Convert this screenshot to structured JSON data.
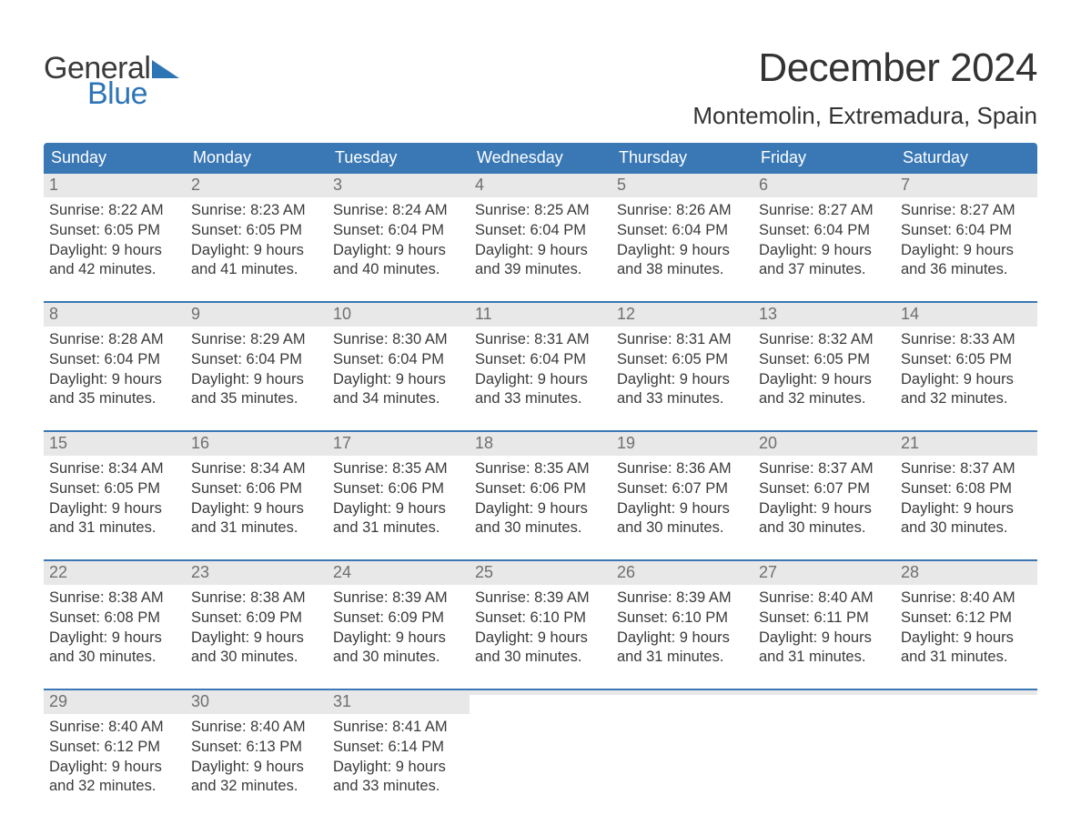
{
  "logo": {
    "line1": "General",
    "line2": "Blue",
    "tri_color": "#2e75b6"
  },
  "title": "December 2024",
  "location": "Montemolin, Extremadura, Spain",
  "colors": {
    "header_bg": "#3a78b5",
    "header_text": "#ffffff",
    "daynum_bg": "#e8e8e8",
    "daynum_text": "#6f6f6f",
    "body_text": "#3a3a3a",
    "week_border": "#3a78b5",
    "page_bg": "#ffffff"
  },
  "typography": {
    "title_fontsize": 44,
    "location_fontsize": 26,
    "header_fontsize": 18,
    "daynum_fontsize": 18,
    "body_fontsize": 16.5,
    "font_family": "Arial"
  },
  "layout": {
    "columns": 7,
    "rows": 5,
    "cell_min_height": 128
  },
  "day_names": [
    "Sunday",
    "Monday",
    "Tuesday",
    "Wednesday",
    "Thursday",
    "Friday",
    "Saturday"
  ],
  "weeks": [
    [
      {
        "n": "1",
        "sr": "Sunrise: 8:22 AM",
        "ss": "Sunset: 6:05 PM",
        "d1": "Daylight: 9 hours",
        "d2": "and 42 minutes."
      },
      {
        "n": "2",
        "sr": "Sunrise: 8:23 AM",
        "ss": "Sunset: 6:05 PM",
        "d1": "Daylight: 9 hours",
        "d2": "and 41 minutes."
      },
      {
        "n": "3",
        "sr": "Sunrise: 8:24 AM",
        "ss": "Sunset: 6:04 PM",
        "d1": "Daylight: 9 hours",
        "d2": "and 40 minutes."
      },
      {
        "n": "4",
        "sr": "Sunrise: 8:25 AM",
        "ss": "Sunset: 6:04 PM",
        "d1": "Daylight: 9 hours",
        "d2": "and 39 minutes."
      },
      {
        "n": "5",
        "sr": "Sunrise: 8:26 AM",
        "ss": "Sunset: 6:04 PM",
        "d1": "Daylight: 9 hours",
        "d2": "and 38 minutes."
      },
      {
        "n": "6",
        "sr": "Sunrise: 8:27 AM",
        "ss": "Sunset: 6:04 PM",
        "d1": "Daylight: 9 hours",
        "d2": "and 37 minutes."
      },
      {
        "n": "7",
        "sr": "Sunrise: 8:27 AM",
        "ss": "Sunset: 6:04 PM",
        "d1": "Daylight: 9 hours",
        "d2": "and 36 minutes."
      }
    ],
    [
      {
        "n": "8",
        "sr": "Sunrise: 8:28 AM",
        "ss": "Sunset: 6:04 PM",
        "d1": "Daylight: 9 hours",
        "d2": "and 35 minutes."
      },
      {
        "n": "9",
        "sr": "Sunrise: 8:29 AM",
        "ss": "Sunset: 6:04 PM",
        "d1": "Daylight: 9 hours",
        "d2": "and 35 minutes."
      },
      {
        "n": "10",
        "sr": "Sunrise: 8:30 AM",
        "ss": "Sunset: 6:04 PM",
        "d1": "Daylight: 9 hours",
        "d2": "and 34 minutes."
      },
      {
        "n": "11",
        "sr": "Sunrise: 8:31 AM",
        "ss": "Sunset: 6:04 PM",
        "d1": "Daylight: 9 hours",
        "d2": "and 33 minutes."
      },
      {
        "n": "12",
        "sr": "Sunrise: 8:31 AM",
        "ss": "Sunset: 6:05 PM",
        "d1": "Daylight: 9 hours",
        "d2": "and 33 minutes."
      },
      {
        "n": "13",
        "sr": "Sunrise: 8:32 AM",
        "ss": "Sunset: 6:05 PM",
        "d1": "Daylight: 9 hours",
        "d2": "and 32 minutes."
      },
      {
        "n": "14",
        "sr": "Sunrise: 8:33 AM",
        "ss": "Sunset: 6:05 PM",
        "d1": "Daylight: 9 hours",
        "d2": "and 32 minutes."
      }
    ],
    [
      {
        "n": "15",
        "sr": "Sunrise: 8:34 AM",
        "ss": "Sunset: 6:05 PM",
        "d1": "Daylight: 9 hours",
        "d2": "and 31 minutes."
      },
      {
        "n": "16",
        "sr": "Sunrise: 8:34 AM",
        "ss": "Sunset: 6:06 PM",
        "d1": "Daylight: 9 hours",
        "d2": "and 31 minutes."
      },
      {
        "n": "17",
        "sr": "Sunrise: 8:35 AM",
        "ss": "Sunset: 6:06 PM",
        "d1": "Daylight: 9 hours",
        "d2": "and 31 minutes."
      },
      {
        "n": "18",
        "sr": "Sunrise: 8:35 AM",
        "ss": "Sunset: 6:06 PM",
        "d1": "Daylight: 9 hours",
        "d2": "and 30 minutes."
      },
      {
        "n": "19",
        "sr": "Sunrise: 8:36 AM",
        "ss": "Sunset: 6:07 PM",
        "d1": "Daylight: 9 hours",
        "d2": "and 30 minutes."
      },
      {
        "n": "20",
        "sr": "Sunrise: 8:37 AM",
        "ss": "Sunset: 6:07 PM",
        "d1": "Daylight: 9 hours",
        "d2": "and 30 minutes."
      },
      {
        "n": "21",
        "sr": "Sunrise: 8:37 AM",
        "ss": "Sunset: 6:08 PM",
        "d1": "Daylight: 9 hours",
        "d2": "and 30 minutes."
      }
    ],
    [
      {
        "n": "22",
        "sr": "Sunrise: 8:38 AM",
        "ss": "Sunset: 6:08 PM",
        "d1": "Daylight: 9 hours",
        "d2": "and 30 minutes."
      },
      {
        "n": "23",
        "sr": "Sunrise: 8:38 AM",
        "ss": "Sunset: 6:09 PM",
        "d1": "Daylight: 9 hours",
        "d2": "and 30 minutes."
      },
      {
        "n": "24",
        "sr": "Sunrise: 8:39 AM",
        "ss": "Sunset: 6:09 PM",
        "d1": "Daylight: 9 hours",
        "d2": "and 30 minutes."
      },
      {
        "n": "25",
        "sr": "Sunrise: 8:39 AM",
        "ss": "Sunset: 6:10 PM",
        "d1": "Daylight: 9 hours",
        "d2": "and 30 minutes."
      },
      {
        "n": "26",
        "sr": "Sunrise: 8:39 AM",
        "ss": "Sunset: 6:10 PM",
        "d1": "Daylight: 9 hours",
        "d2": "and 31 minutes."
      },
      {
        "n": "27",
        "sr": "Sunrise: 8:40 AM",
        "ss": "Sunset: 6:11 PM",
        "d1": "Daylight: 9 hours",
        "d2": "and 31 minutes."
      },
      {
        "n": "28",
        "sr": "Sunrise: 8:40 AM",
        "ss": "Sunset: 6:12 PM",
        "d1": "Daylight: 9 hours",
        "d2": "and 31 minutes."
      }
    ],
    [
      {
        "n": "29",
        "sr": "Sunrise: 8:40 AM",
        "ss": "Sunset: 6:12 PM",
        "d1": "Daylight: 9 hours",
        "d2": "and 32 minutes."
      },
      {
        "n": "30",
        "sr": "Sunrise: 8:40 AM",
        "ss": "Sunset: 6:13 PM",
        "d1": "Daylight: 9 hours",
        "d2": "and 32 minutes."
      },
      {
        "n": "31",
        "sr": "Sunrise: 8:41 AM",
        "ss": "Sunset: 6:14 PM",
        "d1": "Daylight: 9 hours",
        "d2": "and 33 minutes."
      },
      {
        "empty": true
      },
      {
        "empty": true
      },
      {
        "empty": true
      },
      {
        "empty": true
      }
    ]
  ]
}
